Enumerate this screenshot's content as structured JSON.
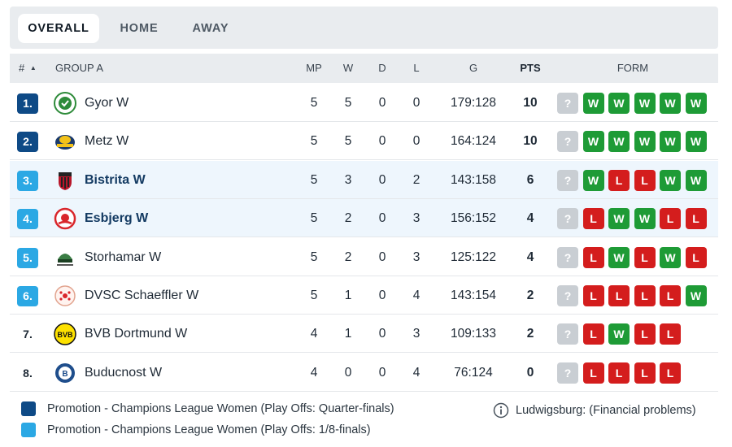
{
  "tabs": [
    "OVERALL",
    "HOME",
    "AWAY"
  ],
  "header": {
    "rank": "#",
    "sort_icon": "caret-up-icon",
    "group": "GROUP A",
    "mp": "MP",
    "w": "W",
    "d": "D",
    "l": "L",
    "g": "G",
    "pts": "PTS",
    "form": "FORM"
  },
  "colors": {
    "promotion_quarter": "#0e4a86",
    "promotion_eighth": "#2ba8e4",
    "form_win": "#1e9b36",
    "form_loss": "#d41d1d",
    "form_unknown": "#c9ced3"
  },
  "rows": [
    {
      "rank": "1.",
      "team": "Gyor W",
      "mp": "5",
      "w": "5",
      "d": "0",
      "l": "0",
      "g": "179:128",
      "pts": "10",
      "form": [
        "?",
        "W",
        "W",
        "W",
        "W",
        "W"
      ],
      "zone": "quarter",
      "logo": "gyor-logo-icon"
    },
    {
      "rank": "2.",
      "team": "Metz W",
      "mp": "5",
      "w": "5",
      "d": "0",
      "l": "0",
      "g": "164:124",
      "pts": "10",
      "form": [
        "?",
        "W",
        "W",
        "W",
        "W",
        "W"
      ],
      "zone": "quarter",
      "logo": "metz-logo-icon"
    },
    {
      "rank": "3.",
      "team": "Bistrita W",
      "mp": "5",
      "w": "3",
      "d": "0",
      "l": "2",
      "g": "143:158",
      "pts": "6",
      "form": [
        "?",
        "W",
        "L",
        "L",
        "W",
        "W"
      ],
      "zone": "eighth",
      "logo": "bistrita-logo-icon"
    },
    {
      "rank": "4.",
      "team": "Esbjerg W",
      "mp": "5",
      "w": "2",
      "d": "0",
      "l": "3",
      "g": "156:152",
      "pts": "4",
      "form": [
        "?",
        "L",
        "W",
        "W",
        "L",
        "L"
      ],
      "zone": "eighth",
      "logo": "esbjerg-logo-icon"
    },
    {
      "rank": "5.",
      "team": "Storhamar W",
      "mp": "5",
      "w": "2",
      "d": "0",
      "l": "3",
      "g": "125:122",
      "pts": "4",
      "form": [
        "?",
        "L",
        "W",
        "L",
        "W",
        "L"
      ],
      "zone": "eighth",
      "logo": "storhamar-logo-icon"
    },
    {
      "rank": "6.",
      "team": "DVSC Schaeffler W",
      "mp": "5",
      "w": "1",
      "d": "0",
      "l": "4",
      "g": "143:154",
      "pts": "2",
      "form": [
        "?",
        "L",
        "L",
        "L",
        "L",
        "W"
      ],
      "zone": "eighth",
      "logo": "dvsc-logo-icon"
    },
    {
      "rank": "7.",
      "team": "BVB Dortmund W",
      "mp": "4",
      "w": "1",
      "d": "0",
      "l": "3",
      "g": "109:133",
      "pts": "2",
      "form": [
        "?",
        "L",
        "W",
        "L",
        "L"
      ],
      "zone": "none",
      "logo": "bvb-logo-icon"
    },
    {
      "rank": "8.",
      "team": "Buducnost W",
      "mp": "4",
      "w": "0",
      "d": "0",
      "l": "4",
      "g": "76:124",
      "pts": "0",
      "form": [
        "?",
        "L",
        "L",
        "L",
        "L"
      ],
      "zone": "none",
      "logo": "buducnost-logo-icon"
    }
  ],
  "legend": [
    {
      "label": "Promotion - Champions League Women (Play Offs: Quarter-finals)",
      "zone": "quarter"
    },
    {
      "label": "Promotion - Champions League Women (Play Offs: 1/8-finals)",
      "zone": "eighth"
    }
  ],
  "note": {
    "icon": "info-icon",
    "text": "Ludwigsburg: (Financial problems)"
  }
}
